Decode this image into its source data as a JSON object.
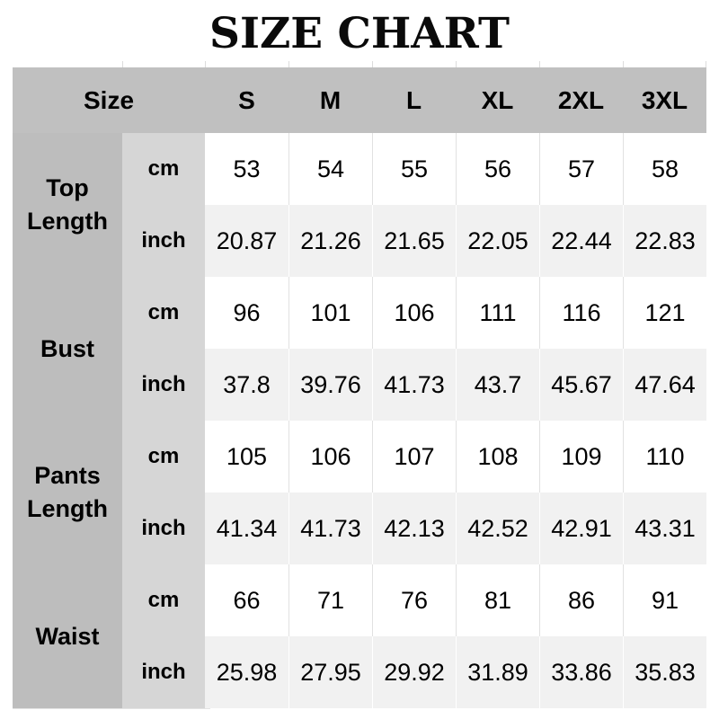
{
  "title": "SIZE CHART",
  "colors": {
    "header_bg": "#c0c0c0",
    "label_column_bg": "#bdbdbd",
    "unit_column_bg": "#d6d6d6",
    "row_cm_bg": "#ffffff",
    "row_inch_bg": "#f1f1f1",
    "text": "#000000",
    "grid_line": "#dcdcdc"
  },
  "chart_data": {
    "type": "table",
    "title": "SIZE CHART",
    "corner_label": "Size",
    "sizes": [
      "S",
      "M",
      "L",
      "XL",
      "2XL",
      "3XL"
    ],
    "measurements": [
      {
        "label": "Top Length",
        "units": [
          {
            "unit": "cm",
            "values": [
              "53",
              "54",
              "55",
              "56",
              "57",
              "58"
            ]
          },
          {
            "unit": "inch",
            "values": [
              "20.87",
              "21.26",
              "21.65",
              "22.05",
              "22.44",
              "22.83"
            ]
          }
        ]
      },
      {
        "label": "Bust",
        "units": [
          {
            "unit": "cm",
            "values": [
              "96",
              "101",
              "106",
              "111",
              "116",
              "121"
            ]
          },
          {
            "unit": "inch",
            "values": [
              "37.8",
              "39.76",
              "41.73",
              "43.7",
              "45.67",
              "47.64"
            ]
          }
        ]
      },
      {
        "label": "Pants Length",
        "units": [
          {
            "unit": "cm",
            "values": [
              "105",
              "106",
              "107",
              "108",
              "109",
              "110"
            ]
          },
          {
            "unit": "inch",
            "values": [
              "41.34",
              "41.73",
              "42.13",
              "42.52",
              "42.91",
              "43.31"
            ]
          }
        ]
      },
      {
        "label": "Waist",
        "units": [
          {
            "unit": "cm",
            "values": [
              "66",
              "71",
              "76",
              "81",
              "86",
              "91"
            ]
          },
          {
            "unit": "inch",
            "values": [
              "25.98",
              "27.95",
              "29.92",
              "31.89",
              "33.86",
              "35.83"
            ]
          }
        ]
      }
    ]
  }
}
